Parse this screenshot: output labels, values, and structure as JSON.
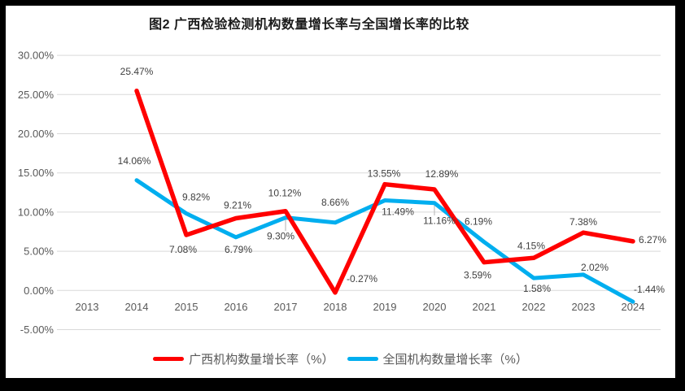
{
  "title": "图2 广西检验检测机构数量增长率与全国增长率的比较",
  "colors": {
    "guangxi": "#FF0000",
    "national": "#00AEEF",
    "gridline": "#D9D9D9",
    "axis_text": "#595959",
    "data_label": "#404040",
    "leader_line": "#BFBFBF",
    "frame": "#000000",
    "background": "#FFFFFF"
  },
  "chart_data": {
    "type": "line",
    "title": "图2 广西检验检测机构数量增长率与全国增长率的比较",
    "categories": [
      "2013",
      "2014",
      "2015",
      "2016",
      "2017",
      "2018",
      "2019",
      "2020",
      "2021",
      "2022",
      "2023",
      "2024"
    ],
    "series": [
      {
        "id": "guangxi",
        "name": "广西机构数量增长率（%）",
        "color": "#FF0000",
        "values": [
          null,
          25.47,
          7.08,
          9.21,
          10.12,
          -0.27,
          13.55,
          12.89,
          3.59,
          4.15,
          7.38,
          6.27
        ],
        "labels": [
          "",
          "25.47%",
          "7.08%",
          "9.21%",
          "10.12%",
          "-0.27%",
          "13.55%",
          "12.89%",
          "3.59%",
          "4.15%",
          "7.38%",
          "6.27%"
        ]
      },
      {
        "id": "national",
        "name": "全国机构数量增长率（%）",
        "color": "#00AEEF",
        "values": [
          null,
          14.06,
          9.82,
          6.79,
          9.3,
          8.66,
          11.49,
          11.16,
          6.19,
          1.58,
          2.02,
          -1.44
        ],
        "labels": [
          "",
          "14.06%",
          "9.82%",
          "6.79%",
          "9.30%",
          "8.66%",
          "11.49%",
          "11.16%",
          "6.19%",
          "1.58%",
          "2.02%",
          "-1.44%"
        ]
      }
    ],
    "y_ticks": [
      "30.00%",
      "25.00%",
      "20.00%",
      "15.00%",
      "10.00%",
      "5.00%",
      "0.00%",
      "-5.00%"
    ],
    "ylim": [
      -5,
      30
    ],
    "xlabel": "",
    "ylabel": "",
    "grid": true,
    "legend_position": "bottom"
  }
}
